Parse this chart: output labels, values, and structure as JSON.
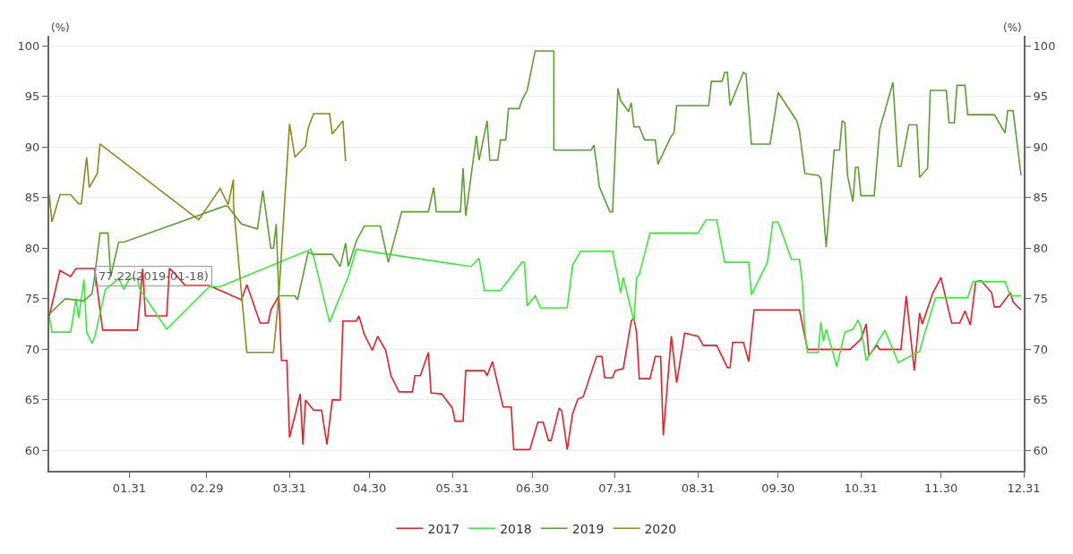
{
  "chart_data": {
    "type": "line",
    "ylabel": "(%)",
    "y2label": "(%)",
    "xlim": [
      "--01-01",
      "--12-31"
    ],
    "xticks": [
      {
        "value": "--01-31",
        "label": "01.31"
      },
      {
        "value": "--02-29",
        "label": "02.29"
      },
      {
        "value": "--03-31",
        "label": "03.31"
      },
      {
        "value": "--04-30",
        "label": "04.30"
      },
      {
        "value": "--05-31",
        "label": "05.31"
      },
      {
        "value": "--06-30",
        "label": "06.30"
      },
      {
        "value": "--07-31",
        "label": "07.31"
      },
      {
        "value": "--08-31",
        "label": "08.31"
      },
      {
        "value": "--09-30",
        "label": "09.30"
      },
      {
        "value": "--10-31",
        "label": "10.31"
      },
      {
        "value": "--11-30",
        "label": "11.30"
      },
      {
        "value": "--12-31",
        "label": "12.31"
      }
    ],
    "ylim": [
      58,
      101
    ],
    "yticks": [
      60,
      65,
      70,
      75,
      80,
      85,
      90,
      95,
      100
    ],
    "y2lim": [
      58,
      101
    ],
    "y2ticks": [
      60,
      65,
      70,
      75,
      80,
      85,
      90,
      95,
      100
    ],
    "grid": "y",
    "legend": "bottom",
    "marker": "none",
    "line_style": "solid",
    "annotations": [
      {
        "text": "77.22(2019-01-18)",
        "x": "--01-18",
        "y": 77.22
      }
    ],
    "series": [
      {
        "name": "2017",
        "color": "#ee1c25",
        "x": [
          "--01-01",
          "--01-05",
          "--01-09",
          "--01-11",
          "--01-18",
          "--01-21",
          "--02-03",
          "--02-05",
          "--02-06",
          "--02-14",
          "--02-15",
          "--02-17",
          "--02-21",
          "--03-01",
          "--03-13",
          "--03-15",
          "--03-20",
          "--03-23",
          "--03-24",
          "--03-27",
          "--03-28",
          "--03-30",
          "--03-31",
          "--04-04",
          "--04-05",
          "--04-06",
          "--04-09",
          "--04-12",
          "--04-14",
          "--04-16",
          "--04-19",
          "--04-20",
          "--04-25",
          "--04-26",
          "--04-28",
          "--05-01",
          "--05-03",
          "--05-06",
          "--05-08",
          "--05-11",
          "--05-16",
          "--05-17",
          "--05-19",
          "--05-22",
          "--05-23",
          "--05-27",
          "--05-31",
          "--06-01",
          "--06-04",
          "--06-05",
          "--06-12",
          "--06-13",
          "--06-15",
          "--06-19",
          "--06-22",
          "--06-23",
          "--06-29",
          "--07-02",
          "--07-04",
          "--07-06",
          "--07-07",
          "--07-10",
          "--07-11",
          "--07-13",
          "--07-15",
          "--07-17",
          "--07-19",
          "--07-24",
          "--07-26",
          "--07-27",
          "--07-30",
          "--07-31",
          "--08-03",
          "--08-06",
          "--08-07",
          "--08-08",
          "--08-09",
          "--08-13",
          "--08-15",
          "--08-17",
          "--08-18",
          "--08-21",
          "--08-23",
          "--08-26",
          "--08-31",
          "--09-02",
          "--09-07",
          "--09-11",
          "--09-12",
          "--09-13",
          "--09-17",
          "--09-19",
          "--09-21",
          "--10-08",
          "--10-11",
          "--10-27",
          "--10-31",
          "--11-02",
          "--11-03",
          "--11-06",
          "--11-07",
          "--11-15",
          "--11-17",
          "--11-20",
          "--11-22",
          "--11-23",
          "--11-27",
          "--11-30",
          "--12-04",
          "--12-07",
          "--12-09",
          "--12-11",
          "--12-13",
          "--12-15",
          "--12-19",
          "--12-20",
          "--12-22",
          "--12-26",
          "--12-27",
          "--12-30"
        ],
        "values": [
          73.3,
          77.8,
          77.2,
          78.0,
          78.0,
          71.9,
          71.9,
          78.0,
          73.3,
          73.3,
          78.0,
          77.5,
          76.3,
          76.3,
          74.9,
          76.4,
          72.6,
          72.6,
          73.9,
          75.3,
          68.9,
          68.9,
          61.3,
          65.6,
          60.6,
          65.0,
          64.0,
          64.0,
          60.6,
          65.0,
          65.0,
          72.8,
          72.8,
          73.3,
          71.5,
          69.9,
          71.3,
          69.9,
          67.4,
          65.8,
          65.8,
          67.4,
          67.4,
          69.7,
          65.7,
          65.6,
          64.2,
          62.9,
          62.9,
          67.9,
          67.9,
          67.4,
          68.8,
          64.3,
          64.3,
          60.1,
          60.1,
          62.8,
          62.8,
          61.0,
          61.0,
          64.2,
          63.9,
          60.1,
          63.6,
          65.1,
          65.3,
          69.3,
          69.3,
          67.2,
          67.2,
          67.9,
          68.1,
          72.8,
          73.1,
          71.6,
          67.1,
          67.1,
          69.3,
          69.3,
          61.5,
          71.3,
          66.7,
          71.6,
          71.3,
          70.4,
          70.4,
          68.2,
          68.2,
          70.7,
          70.7,
          68.8,
          73.9,
          73.9,
          70.0,
          70.0,
          71.0,
          72.5,
          69.4,
          70.4,
          70.0,
          70.0,
          75.3,
          67.9,
          73.6,
          72.5,
          75.6,
          77.1,
          72.6,
          72.6,
          73.8,
          72.4,
          76.7,
          76.8,
          75.6,
          74.2,
          74.2,
          75.6,
          74.7,
          73.9
        ]
      },
      {
        "name": "2018",
        "color": "#33ee33",
        "x": [
          "--01-01",
          "--01-02",
          "--01-09",
          "--01-10",
          "--01-11",
          "--01-12",
          "--01-14",
          "--01-15",
          "--01-17",
          "--01-18",
          "--01-22",
          "--01-27",
          "--01-29",
          "--01-31",
          "--02-03",
          "--02-04",
          "--02-14",
          "--03-01",
          "--03-05",
          "--04-08",
          "--04-09",
          "--04-15",
          "--04-22",
          "--04-25",
          "--05-02",
          "--06-07",
          "--06-10",
          "--06-12",
          "--06-18",
          "--06-26",
          "--06-27",
          "--06-28",
          "--07-01",
          "--07-03",
          "--07-13",
          "--07-15",
          "--07-18",
          "--07-30",
          "--08-01",
          "--08-02",
          "--08-03",
          "--08-07",
          "--08-08",
          "--08-09",
          "--08-13",
          "--08-31",
          "--09-03",
          "--09-07",
          "--09-10",
          "--09-19",
          "--09-20",
          "--09-26",
          "--09-28",
          "--09-30",
          "--10-05",
          "--10-08",
          "--10-09",
          "--10-10",
          "--10-11",
          "--10-15",
          "--10-16",
          "--10-17",
          "--10-18",
          "--10-22",
          "--10-25",
          "--10-28",
          "--10-30",
          "--10-31",
          "--11-02",
          "--11-09",
          "--11-14",
          "--11-22",
          "--11-24",
          "--11-28",
          "--12-10",
          "--12-12",
          "--12-24",
          "--12-26",
          "--12-30"
        ],
        "values": [
          73.3,
          71.7,
          71.7,
          73.3,
          75.0,
          73.1,
          76.9,
          71.7,
          70.6,
          71.2,
          75.9,
          77.0,
          75.9,
          77.0,
          77.0,
          75.9,
          72.0,
          76.2,
          76.2,
          79.9,
          79.2,
          72.7,
          77.2,
          79.9,
          79.6,
          78.2,
          79.0,
          75.8,
          75.8,
          78.6,
          78.6,
          74.3,
          75.3,
          74.1,
          74.1,
          78.3,
          79.7,
          79.7,
          77.1,
          75.6,
          77.1,
          72.8,
          77.1,
          77.4,
          81.5,
          81.5,
          82.8,
          82.8,
          78.6,
          78.6,
          75.4,
          78.6,
          82.6,
          82.6,
          78.9,
          78.9,
          76.7,
          71.9,
          69.7,
          69.7,
          72.7,
          70.8,
          72.0,
          68.3,
          71.7,
          72.0,
          72.9,
          72.2,
          68.9,
          71.9,
          68.7,
          69.8,
          71.7,
          75.1,
          75.1,
          76.7,
          76.7,
          75.3,
          75.3
        ]
      },
      {
        "name": "2019",
        "color": "#5ba030",
        "x": [
          "--01-01",
          "--01-07",
          "--01-14",
          "--01-17",
          "--01-18",
          "--01-20",
          "--01-23",
          "--01-24",
          "--01-27",
          "--01-29",
          "--03-07",
          "--03-08",
          "--03-13",
          "--03-19",
          "--03-21",
          "--03-24",
          "--03-25",
          "--03-26",
          "--03-27",
          "--04-02",
          "--04-03",
          "--04-07",
          "--04-09",
          "--04-16",
          "--04-19",
          "--04-21",
          "--04-22",
          "--04-25",
          "--04-28",
          "--05-04",
          "--05-07",
          "--05-12",
          "--05-22",
          "--05-24",
          "--05-25",
          "--06-03",
          "--06-04",
          "--06-05",
          "--06-09",
          "--06-10",
          "--06-13",
          "--06-14",
          "--06-17",
          "--06-18",
          "--06-20",
          "--06-21",
          "--06-25",
          "--06-26",
          "--06-28",
          "--07-01",
          "--07-08",
          "--07-08",
          "--07-22",
          "--07-23",
          "--07-24",
          "--07-25",
          "--07-29",
          "--07-30",
          "--08-01",
          "--08-02",
          "--08-05",
          "--08-06",
          "--08-07",
          "--08-09",
          "--08-11",
          "--08-15",
          "--08-16",
          "--08-19",
          "--08-21",
          "--08-22",
          "--08-23",
          "--09-04",
          "--09-05",
          "--09-09",
          "--09-10",
          "--09-11",
          "--09-12",
          "--09-17",
          "--09-18",
          "--09-20",
          "--09-27",
          "--09-30",
          "--10-07",
          "--10-08",
          "--10-10",
          "--10-15",
          "--10-16",
          "--10-18",
          "--10-21",
          "--10-23",
          "--10-24",
          "--10-25",
          "--10-26",
          "--10-28",
          "--10-29",
          "--10-30",
          "--10-31",
          "--11-05",
          "--11-07",
          "--11-12",
          "--11-14",
          "--11-15",
          "--11-18",
          "--11-21",
          "--11-22",
          "--11-25",
          "--11-26",
          "--12-02",
          "--12-03",
          "--12-05",
          "--12-06",
          "--12-09",
          "--12-10",
          "--12-20",
          "--12-24",
          "--12-25",
          "--12-27",
          "--12-30"
        ],
        "values": [
          73.5,
          75.0,
          74.8,
          75.5,
          77.22,
          81.5,
          81.5,
          77.2,
          80.6,
          80.6,
          84.2,
          84.1,
          82.4,
          81.9,
          85.7,
          80.0,
          80.0,
          82.4,
          75.3,
          75.3,
          74.9,
          79.6,
          79.4,
          79.4,
          78.2,
          80.5,
          78.2,
          80.7,
          82.2,
          82.2,
          78.6,
          83.6,
          83.6,
          86.0,
          83.6,
          83.6,
          87.9,
          83.2,
          91.1,
          88.7,
          92.6,
          88.7,
          88.7,
          90.7,
          90.7,
          93.8,
          93.8,
          94.6,
          95.6,
          99.5,
          99.5,
          89.7,
          89.7,
          90.2,
          88.3,
          86.1,
          83.6,
          83.6,
          95.8,
          94.6,
          93.5,
          94.4,
          92.0,
          92.0,
          90.7,
          90.7,
          88.3,
          90.0,
          91.1,
          91.4,
          94.1,
          94.1,
          96.5,
          96.5,
          97.4,
          97.4,
          94.1,
          97.4,
          97.2,
          90.3,
          90.3,
          95.4,
          92.6,
          91.6,
          87.4,
          87.2,
          86.9,
          80.1,
          89.7,
          89.7,
          92.6,
          92.4,
          87.2,
          84.6,
          88.0,
          88.0,
          85.2,
          85.2,
          91.7,
          96.4,
          88.1,
          88.1,
          92.2,
          92.2,
          87.0,
          87.9,
          95.6,
          95.6,
          92.4,
          92.4,
          96.1,
          96.1,
          93.2,
          93.2,
          91.4,
          93.6,
          93.6,
          87.2
        ]
      },
      {
        "name": "2020",
        "color": "#8b8b1a",
        "x": [
          "--01-01",
          "--01-02",
          "--01-05",
          "--01-09",
          "--01-12",
          "--01-13",
          "--01-15",
          "--01-16",
          "--01-19",
          "--01-20",
          "--02-26",
          "--03-05",
          "--03-08",
          "--03-10",
          "--03-10",
          "--03-15",
          "--03-25",
          "--03-27",
          "--03-31",
          "--04-02",
          "--04-06",
          "--04-07",
          "--04-09",
          "--04-15",
          "--04-16",
          "--04-20",
          "--04-21"
        ],
        "values": [
          85.3,
          82.6,
          85.3,
          85.3,
          84.4,
          84.4,
          89.0,
          86.0,
          87.4,
          90.3,
          82.8,
          85.9,
          84.3,
          86.8,
          84.3,
          69.7,
          69.7,
          75.4,
          92.3,
          89.0,
          90.1,
          91.9,
          93.3,
          93.3,
          91.3,
          92.6,
          88.6
        ]
      }
    ]
  }
}
